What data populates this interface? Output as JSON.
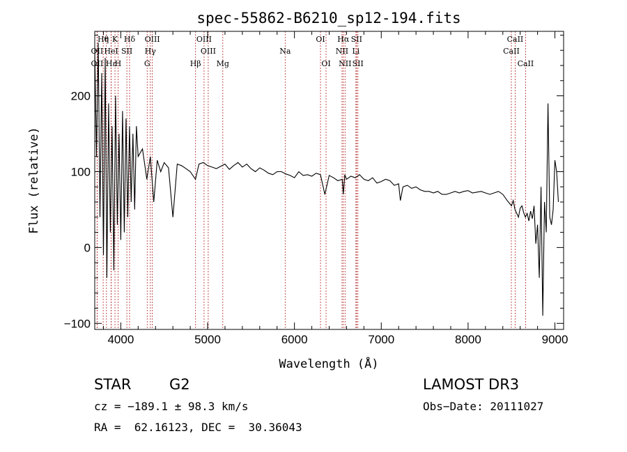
{
  "chart_data": {
    "type": "line",
    "title": "spec-55862-B6210_sp12-194.fits",
    "xlabel": "Wavelength (Å)",
    "ylabel": "Flux (relative)",
    "xlim": [
      3700,
      9100
    ],
    "ylim": [
      -108,
      285
    ],
    "xticks": [
      4000,
      5000,
      6000,
      7000,
      8000,
      9000
    ],
    "yticks": [
      -100,
      0,
      100,
      200
    ],
    "series": [
      {
        "name": "flux",
        "x": [
          3700,
          3720,
          3740,
          3760,
          3780,
          3800,
          3820,
          3840,
          3860,
          3880,
          3900,
          3920,
          3940,
          3960,
          3980,
          4000,
          4020,
          4040,
          4060,
          4080,
          4100,
          4120,
          4140,
          4160,
          4180,
          4200,
          4250,
          4300,
          4340,
          4380,
          4420,
          4460,
          4500,
          4550,
          4600,
          4650,
          4700,
          4750,
          4800,
          4860,
          4900,
          4950,
          5000,
          5050,
          5100,
          5150,
          5200,
          5250,
          5300,
          5350,
          5400,
          5450,
          5500,
          5550,
          5600,
          5650,
          5700,
          5750,
          5800,
          5850,
          5900,
          5950,
          6000,
          6050,
          6100,
          6150,
          6200,
          6250,
          6300,
          6350,
          6400,
          6450,
          6500,
          6550,
          6563,
          6580,
          6600,
          6650,
          6700,
          6750,
          6800,
          6850,
          6900,
          6950,
          7000,
          7050,
          7100,
          7150,
          7200,
          7220,
          7250,
          7300,
          7350,
          7400,
          7450,
          7500,
          7550,
          7600,
          7650,
          7700,
          7750,
          7800,
          7850,
          7900,
          7950,
          8000,
          8050,
          8100,
          8150,
          8200,
          8250,
          8300,
          8350,
          8400,
          8450,
          8500,
          8520,
          8540,
          8560,
          8580,
          8600,
          8620,
          8640,
          8660,
          8680,
          8700,
          8720,
          8740,
          8760,
          8780,
          8800,
          8820,
          8840,
          8860,
          8880,
          8900,
          8920,
          8940,
          8960,
          8980,
          9000,
          9020,
          9040
        ],
        "values": [
          260,
          120,
          270,
          40,
          230,
          -10,
          250,
          -40,
          190,
          20,
          160,
          -30,
          200,
          30,
          150,
          10,
          180,
          20,
          170,
          40,
          160,
          60,
          150,
          50,
          160,
          120,
          130,
          90,
          120,
          60,
          115,
          100,
          112,
          105,
          40,
          110,
          108,
          104,
          100,
          90,
          110,
          112,
          108,
          106,
          104,
          107,
          110,
          103,
          108,
          112,
          106,
          110,
          104,
          100,
          105,
          102,
          98,
          96,
          100,
          100,
          97,
          95,
          92,
          100,
          95,
          96,
          94,
          98,
          96,
          70,
          95,
          92,
          88,
          90,
          70,
          96,
          90,
          94,
          92,
          96,
          90,
          88,
          92,
          85,
          87,
          90,
          88,
          82,
          84,
          62,
          80,
          82,
          78,
          80,
          76,
          74,
          74,
          72,
          74,
          70,
          70,
          72,
          74,
          72,
          74,
          75,
          72,
          73,
          74,
          72,
          70,
          72,
          74,
          70,
          62,
          55,
          62,
          50,
          45,
          40,
          52,
          55,
          46,
          40,
          45,
          35,
          48,
          38,
          55,
          5,
          30,
          -40,
          80,
          -90,
          60,
          20,
          190,
          40,
          30,
          50,
          115,
          100,
          60
        ]
      }
    ],
    "emission_lines": [
      {
        "label": "Hθ",
        "x": 3797,
        "row": 0
      },
      {
        "label": "η",
        "x": 3835,
        "row": 0
      },
      {
        "label": "K",
        "x": 3933,
        "row": 0
      },
      {
        "label": "Hδ",
        "x": 4101,
        "row": 0
      },
      {
        "label": "OIII",
        "x": 4363,
        "row": 0
      },
      {
        "label": "OIII",
        "x": 4959,
        "row": 0
      },
      {
        "label": "OI",
        "x": 6300,
        "row": 0
      },
      {
        "label": "Hα",
        "x": 6563,
        "row": 0
      },
      {
        "label": "SII",
        "x": 6716,
        "row": 0
      },
      {
        "label": "CaII",
        "x": 8542,
        "row": 0
      },
      {
        "label": "OII",
        "x": 3727,
        "row": 1
      },
      {
        "label": "HeI",
        "x": 3889,
        "row": 1
      },
      {
        "label": "SII",
        "x": 4070,
        "row": 1
      },
      {
        "label": "Hγ",
        "x": 4340,
        "row": 1
      },
      {
        "label": "OIII",
        "x": 5007,
        "row": 1
      },
      {
        "label": "Na",
        "x": 5893,
        "row": 1
      },
      {
        "label": "NII",
        "x": 6548,
        "row": 1
      },
      {
        "label": "Li",
        "x": 6708,
        "row": 1
      },
      {
        "label": "CaII",
        "x": 8498,
        "row": 1
      },
      {
        "label": "OII",
        "x": 3727,
        "row": 2
      },
      {
        "label": "Hε",
        "x": 3889,
        "row": 2
      },
      {
        "label": "H",
        "x": 3968,
        "row": 2
      },
      {
        "label": "G",
        "x": 4304,
        "row": 2
      },
      {
        "label": "Hβ",
        "x": 4861,
        "row": 2
      },
      {
        "label": "Mg",
        "x": 5175,
        "row": 2
      },
      {
        "label": "OI",
        "x": 6364,
        "row": 2
      },
      {
        "label": "NII",
        "x": 6583,
        "row": 2
      },
      {
        "label": "SII",
        "x": 6731,
        "row": 2
      },
      {
        "label": "CaII",
        "x": 8662,
        "row": 2
      }
    ],
    "line_color": "#000000",
    "marker_color": "#b22222"
  },
  "footer": {
    "object_type": "STAR",
    "subclass": "G2",
    "survey": "LAMOST DR3",
    "cz": "cz = −189.1 ± 98.3 km/s",
    "obs_date": "Obs−Date: 20111027",
    "coords": "RA =  62.16123, DEC =  30.36043"
  }
}
